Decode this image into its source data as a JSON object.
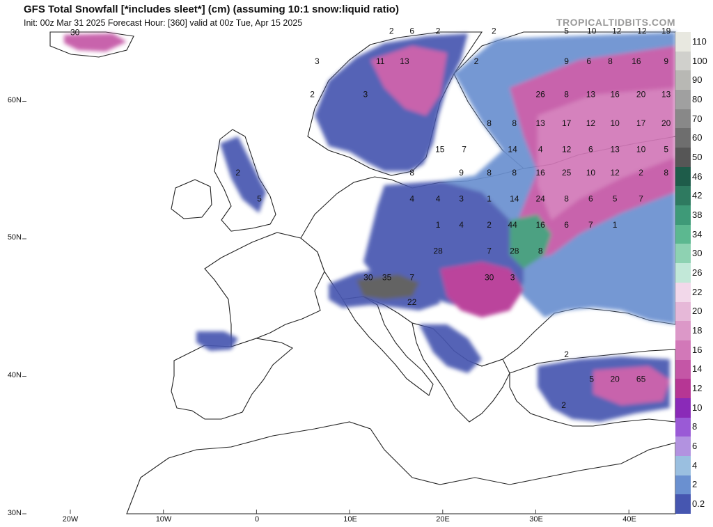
{
  "header": {
    "title": "GFS Total Snowfall [*includes sleet*] (cm) (assuming 10:1 snow:liquid ratio)",
    "subtitle": "Init: 00z Mar 31 2025   Forecast Hour: [360]   valid at 00z Tue, Apr 15 2025",
    "brand": "TROPICALTIDBITS.COM"
  },
  "axes": {
    "y_labels": [
      "60N",
      "50N",
      "40N",
      "30N"
    ],
    "x_labels": [
      "20W",
      "10W",
      "0",
      "10E",
      "20E",
      "30E",
      "40E"
    ]
  },
  "legend": {
    "labels": [
      "110",
      "100",
      "90",
      "80",
      "70",
      "60",
      "50",
      "46",
      "42",
      "38",
      "34",
      "30",
      "26",
      "22",
      "20",
      "18",
      "16",
      "14",
      "12",
      "10",
      "8",
      "6",
      "4",
      "2",
      "0.2"
    ],
    "colors": [
      "#e8e8e0",
      "#d0d0cc",
      "#b8b8b4",
      "#a0a0a0",
      "#888888",
      "#6e6e6e",
      "#565656",
      "#1e5c4a",
      "#2e7a60",
      "#3e9a78",
      "#5cb890",
      "#8ed2b2",
      "#c2e8d8",
      "#f2d8ea",
      "#e6b8d8",
      "#dc98c8",
      "#d278b8",
      "#c456a6",
      "#b63694",
      "#8a2ab8",
      "#9a5ad6",
      "#b292e0",
      "#9abfe0",
      "#6a90d0",
      "#4656b0"
    ]
  },
  "map_labels": [
    {
      "text": "30",
      "lon": -19.5,
      "lat": 64.8
    },
    {
      "text": "2",
      "lon": 14.5,
      "lat": 64.9
    },
    {
      "text": "6",
      "lon": 16.7,
      "lat": 64.9
    },
    {
      "text": "2",
      "lon": 19.5,
      "lat": 64.9
    },
    {
      "text": "2",
      "lon": 25.5,
      "lat": 64.9
    },
    {
      "text": "5",
      "lon": 33.3,
      "lat": 64.9
    },
    {
      "text": "10",
      "lon": 36.0,
      "lat": 64.9
    },
    {
      "text": "12",
      "lon": 38.7,
      "lat": 64.9
    },
    {
      "text": "12",
      "lon": 41.4,
      "lat": 64.9
    },
    {
      "text": "19",
      "lon": 44.0,
      "lat": 64.9
    },
    {
      "text": "3",
      "lon": 6.5,
      "lat": 62.7
    },
    {
      "text": "11",
      "lon": 13.3,
      "lat": 62.7
    },
    {
      "text": "13",
      "lon": 15.9,
      "lat": 62.7
    },
    {
      "text": "2",
      "lon": 23.6,
      "lat": 62.7
    },
    {
      "text": "9",
      "lon": 33.3,
      "lat": 62.7
    },
    {
      "text": "6",
      "lon": 35.7,
      "lat": 62.7
    },
    {
      "text": "8",
      "lon": 38.0,
      "lat": 62.7
    },
    {
      "text": "16",
      "lon": 40.8,
      "lat": 62.7
    },
    {
      "text": "9",
      "lon": 44.0,
      "lat": 62.7
    },
    {
      "text": "2",
      "lon": 6.0,
      "lat": 60.3
    },
    {
      "text": "3",
      "lon": 11.7,
      "lat": 60.3
    },
    {
      "text": "26",
      "lon": 30.5,
      "lat": 60.3
    },
    {
      "text": "8",
      "lon": 33.3,
      "lat": 60.3
    },
    {
      "text": "13",
      "lon": 35.9,
      "lat": 60.3
    },
    {
      "text": "16",
      "lon": 38.5,
      "lat": 60.3
    },
    {
      "text": "20",
      "lon": 41.3,
      "lat": 60.3
    },
    {
      "text": "13",
      "lon": 44.0,
      "lat": 60.3
    },
    {
      "text": "8",
      "lon": 25.0,
      "lat": 58.2
    },
    {
      "text": "8",
      "lon": 27.7,
      "lat": 58.2
    },
    {
      "text": "13",
      "lon": 30.5,
      "lat": 58.2
    },
    {
      "text": "17",
      "lon": 33.3,
      "lat": 58.2
    },
    {
      "text": "12",
      "lon": 35.9,
      "lat": 58.2
    },
    {
      "text": "10",
      "lon": 38.5,
      "lat": 58.2
    },
    {
      "text": "17",
      "lon": 41.3,
      "lat": 58.2
    },
    {
      "text": "20",
      "lon": 44.0,
      "lat": 58.2
    },
    {
      "text": "15",
      "lon": 19.7,
      "lat": 56.3
    },
    {
      "text": "7",
      "lon": 22.3,
      "lat": 56.3
    },
    {
      "text": "14",
      "lon": 27.5,
      "lat": 56.3
    },
    {
      "text": "4",
      "lon": 30.5,
      "lat": 56.3
    },
    {
      "text": "12",
      "lon": 33.3,
      "lat": 56.3
    },
    {
      "text": "6",
      "lon": 35.9,
      "lat": 56.3
    },
    {
      "text": "13",
      "lon": 38.5,
      "lat": 56.3
    },
    {
      "text": "10",
      "lon": 41.3,
      "lat": 56.3
    },
    {
      "text": "5",
      "lon": 44.0,
      "lat": 56.3
    },
    {
      "text": "2",
      "lon": -2.0,
      "lat": 54.6
    },
    {
      "text": "8",
      "lon": 16.7,
      "lat": 54.6
    },
    {
      "text": "9",
      "lon": 22.0,
      "lat": 54.6
    },
    {
      "text": "8",
      "lon": 25.0,
      "lat": 54.6
    },
    {
      "text": "8",
      "lon": 27.7,
      "lat": 54.6
    },
    {
      "text": "16",
      "lon": 30.5,
      "lat": 54.6
    },
    {
      "text": "25",
      "lon": 33.3,
      "lat": 54.6
    },
    {
      "text": "10",
      "lon": 35.9,
      "lat": 54.6
    },
    {
      "text": "12",
      "lon": 38.5,
      "lat": 54.6
    },
    {
      "text": "2",
      "lon": 41.3,
      "lat": 54.6
    },
    {
      "text": "8",
      "lon": 44.0,
      "lat": 54.6
    },
    {
      "text": "5",
      "lon": 0.3,
      "lat": 52.7
    },
    {
      "text": "4",
      "lon": 16.7,
      "lat": 52.7
    },
    {
      "text": "4",
      "lon": 19.5,
      "lat": 52.7
    },
    {
      "text": "3",
      "lon": 22.0,
      "lat": 52.7
    },
    {
      "text": "1",
      "lon": 25.0,
      "lat": 52.7
    },
    {
      "text": "14",
      "lon": 27.7,
      "lat": 52.7
    },
    {
      "text": "24",
      "lon": 30.5,
      "lat": 52.7
    },
    {
      "text": "8",
      "lon": 33.3,
      "lat": 52.7
    },
    {
      "text": "6",
      "lon": 35.9,
      "lat": 52.7
    },
    {
      "text": "5",
      "lon": 38.5,
      "lat": 52.7
    },
    {
      "text": "7",
      "lon": 41.3,
      "lat": 52.7
    },
    {
      "text": "1",
      "lon": 19.5,
      "lat": 50.8
    },
    {
      "text": "4",
      "lon": 22.0,
      "lat": 50.8
    },
    {
      "text": "2",
      "lon": 25.0,
      "lat": 50.8
    },
    {
      "text": "44",
      "lon": 27.5,
      "lat": 50.8
    },
    {
      "text": "16",
      "lon": 30.5,
      "lat": 50.8
    },
    {
      "text": "6",
      "lon": 33.3,
      "lat": 50.8
    },
    {
      "text": "7",
      "lon": 35.9,
      "lat": 50.8
    },
    {
      "text": "1",
      "lon": 38.5,
      "lat": 50.8
    },
    {
      "text": "28",
      "lon": 19.5,
      "lat": 48.9
    },
    {
      "text": "7",
      "lon": 25.0,
      "lat": 48.9
    },
    {
      "text": "28",
      "lon": 27.7,
      "lat": 48.9
    },
    {
      "text": "8",
      "lon": 30.5,
      "lat": 48.9
    },
    {
      "text": "30",
      "lon": 12.0,
      "lat": 47.0
    },
    {
      "text": "35",
      "lon": 14.0,
      "lat": 47.0
    },
    {
      "text": "7",
      "lon": 16.7,
      "lat": 47.0
    },
    {
      "text": "30",
      "lon": 25.0,
      "lat": 47.0
    },
    {
      "text": "3",
      "lon": 27.5,
      "lat": 47.0
    },
    {
      "text": "22",
      "lon": 16.7,
      "lat": 45.2
    },
    {
      "text": "2",
      "lon": 33.3,
      "lat": 41.4
    },
    {
      "text": "5",
      "lon": 36.0,
      "lat": 39.6
    },
    {
      "text": "20",
      "lon": 38.5,
      "lat": 39.6
    },
    {
      "text": "65",
      "lon": 41.3,
      "lat": 39.6
    },
    {
      "text": "2",
      "lon": 33.0,
      "lat": 37.7
    }
  ]
}
